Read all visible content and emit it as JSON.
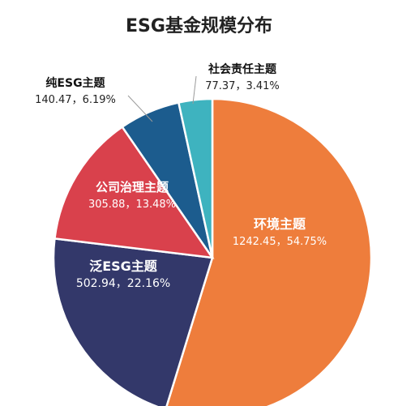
{
  "chart_data": {
    "type": "pie",
    "title": "ESG基金规模分布",
    "slices": [
      {
        "name": "环境主题",
        "value": 1242.45,
        "value_text": "1242.45，54.75%",
        "color": "#EE7D3C"
      },
      {
        "name": "泛ESG主题",
        "value": 502.94,
        "value_text": "502.94，22.16%",
        "color": "#33386A"
      },
      {
        "name": "公司治理主题",
        "value": 305.88,
        "value_text": "305.88，13.48%",
        "color": "#D9414C"
      },
      {
        "name": "纯ESG主题",
        "value": 140.47,
        "value_text": "140.47，6.19%",
        "color": "#1C5C8E"
      },
      {
        "name": "社会责任主题",
        "value": 77.37,
        "value_text": "77.37，3.41%",
        "color": "#3EB3BF"
      }
    ],
    "start_angle_deg": 0,
    "direction": "clockwise"
  }
}
